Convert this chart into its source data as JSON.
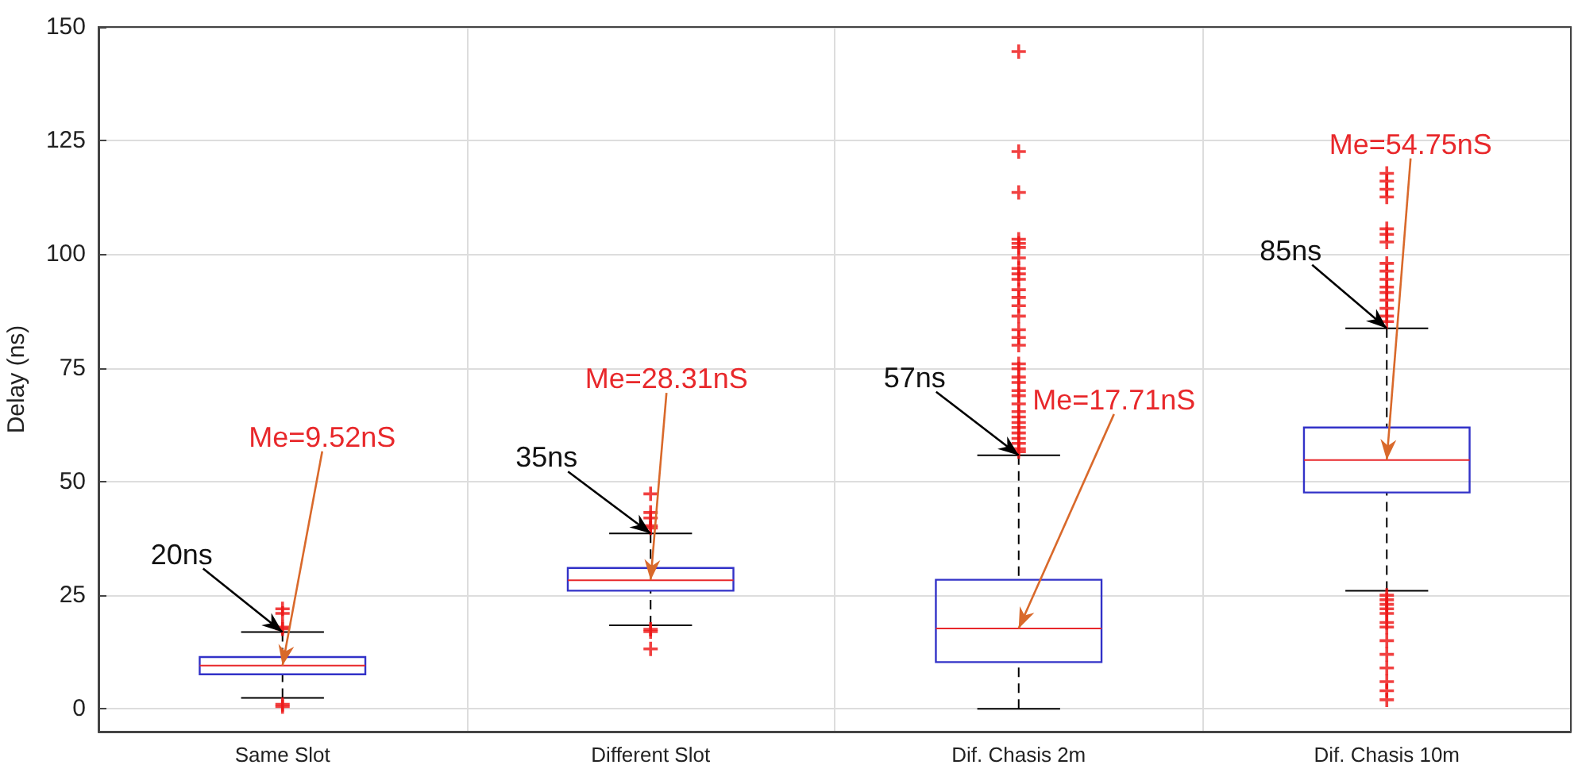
{
  "chart_data": {
    "type": "box",
    "ylabel": "Delay (ns)",
    "categories": [
      "Same Slot",
      "Different Slot",
      "Dif. Chasis 2m",
      "Dif. Chasis 10m"
    ],
    "ylim": [
      -5,
      150
    ],
    "yticks": [
      0,
      25,
      50,
      75,
      100,
      125,
      150
    ],
    "grid": true,
    "marker": "cross",
    "boxes": [
      {
        "low": 2.4,
        "q1": 7.6,
        "median": 9.52,
        "q3": 11.4,
        "high": 16.9,
        "outliers": [
          0.5,
          1,
          17.6,
          18,
          21,
          22
        ]
      },
      {
        "low": 18.4,
        "q1": 26,
        "median": 28.31,
        "q3": 31,
        "high": 38.6,
        "outliers": [
          13.2,
          17,
          17.5,
          39.8,
          40.3,
          42,
          43.2,
          47.3
        ]
      },
      {
        "low": 0,
        "q1": 10.3,
        "median": 17.71,
        "q3": 28.4,
        "high": 55.8,
        "outliers": [
          56.6,
          57.2,
          58.4,
          59.5,
          60.7,
          61.9,
          63,
          64.2,
          65.4,
          67.1,
          68.9,
          70,
          71.8,
          73,
          74.8,
          75.9,
          80,
          81.7,
          83.4,
          86.4,
          88.7,
          90.5,
          92.2,
          94.5,
          95.7,
          96.9,
          99.2,
          101.5,
          102.4,
          103.3,
          113.6,
          122.6,
          144.6
        ]
      },
      {
        "low": 26,
        "q1": 47.6,
        "median": 54.75,
        "q3": 61.9,
        "high": 83.7,
        "outliers": [
          2,
          4,
          6,
          9,
          12,
          15,
          18,
          19,
          21,
          22,
          23,
          24,
          25,
          85.2,
          86.4,
          88.1,
          89.9,
          91.6,
          92.8,
          94.5,
          96.3,
          98,
          102.7,
          104.4,
          105.6,
          112.6,
          114.3,
          116.1,
          117.8
        ]
      }
    ],
    "annotations": [
      {
        "text": "20ns",
        "x": "Same Slot",
        "y": 16.9
      },
      {
        "text": "Me=9.52nS",
        "x": "Same Slot",
        "y": 9.52
      },
      {
        "text": "35ns",
        "x": "Different Slot",
        "y": 38.6
      },
      {
        "text": "Me=28.31nS",
        "x": "Different Slot",
        "y": 28.31
      },
      {
        "text": "57ns",
        "x": "Dif. Chasis 2m",
        "y": 55.8
      },
      {
        "text": "Me=17.71nS",
        "x": "Dif. Chasis 2m",
        "y": 17.71
      },
      {
        "text": "85ns",
        "x": "Dif. Chasis 10m",
        "y": 83.7
      },
      {
        "text": "Me=54.75nS",
        "x": "Dif. Chasis 10m",
        "y": 54.75
      }
    ]
  }
}
